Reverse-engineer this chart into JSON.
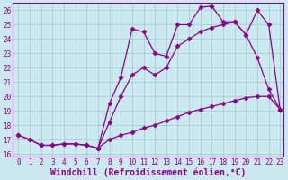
{
  "xlabel": "Windchill (Refroidissement éolien,°C)",
  "bg_color": "#cce8f0",
  "line_color": "#880088",
  "xlim": [
    -0.5,
    23.3
  ],
  "ylim": [
    15.8,
    26.5
  ],
  "yticks": [
    16,
    17,
    18,
    19,
    20,
    21,
    22,
    23,
    24,
    25,
    26
  ],
  "xticks": [
    0,
    1,
    2,
    3,
    4,
    5,
    6,
    7,
    8,
    9,
    10,
    11,
    12,
    13,
    14,
    15,
    16,
    17,
    18,
    19,
    20,
    21,
    22,
    23
  ],
  "line1_x": [
    0,
    1,
    2,
    3,
    4,
    5,
    6,
    7,
    8,
    9,
    10,
    11,
    12,
    13,
    14,
    15,
    16,
    17,
    18,
    19,
    20,
    21,
    22,
    23
  ],
  "line1_y": [
    17.3,
    17.0,
    16.6,
    16.6,
    16.7,
    16.7,
    16.6,
    16.4,
    17.0,
    17.3,
    17.5,
    17.8,
    18.0,
    18.3,
    18.6,
    18.9,
    19.1,
    19.3,
    19.5,
    19.7,
    19.9,
    20.0,
    20.0,
    19.1
  ],
  "line2_x": [
    0,
    1,
    2,
    3,
    4,
    5,
    6,
    7,
    8,
    9,
    10,
    11,
    12,
    13,
    14,
    15,
    16,
    17,
    18,
    19,
    20,
    21,
    22,
    23
  ],
  "line2_y": [
    17.3,
    17.0,
    16.6,
    16.6,
    16.7,
    16.7,
    16.6,
    16.4,
    18.2,
    20.0,
    21.5,
    22.0,
    21.5,
    22.0,
    23.5,
    24.0,
    24.5,
    24.8,
    25.0,
    25.2,
    24.3,
    22.7,
    20.5,
    19.1
  ],
  "line3_x": [
    7,
    8,
    9,
    10,
    11,
    12,
    13,
    14,
    15,
    16,
    17,
    18,
    19,
    20,
    21,
    22,
    23
  ],
  "line3_y": [
    16.4,
    19.5,
    21.3,
    24.7,
    24.5,
    23.0,
    22.8,
    25.0,
    25.0,
    26.2,
    26.3,
    25.2,
    25.2,
    24.3,
    26.0,
    25.0,
    19.1
  ],
  "grid_color": "#99cccc",
  "tick_fontsize": 5.5,
  "xlabel_fontsize": 7.0
}
